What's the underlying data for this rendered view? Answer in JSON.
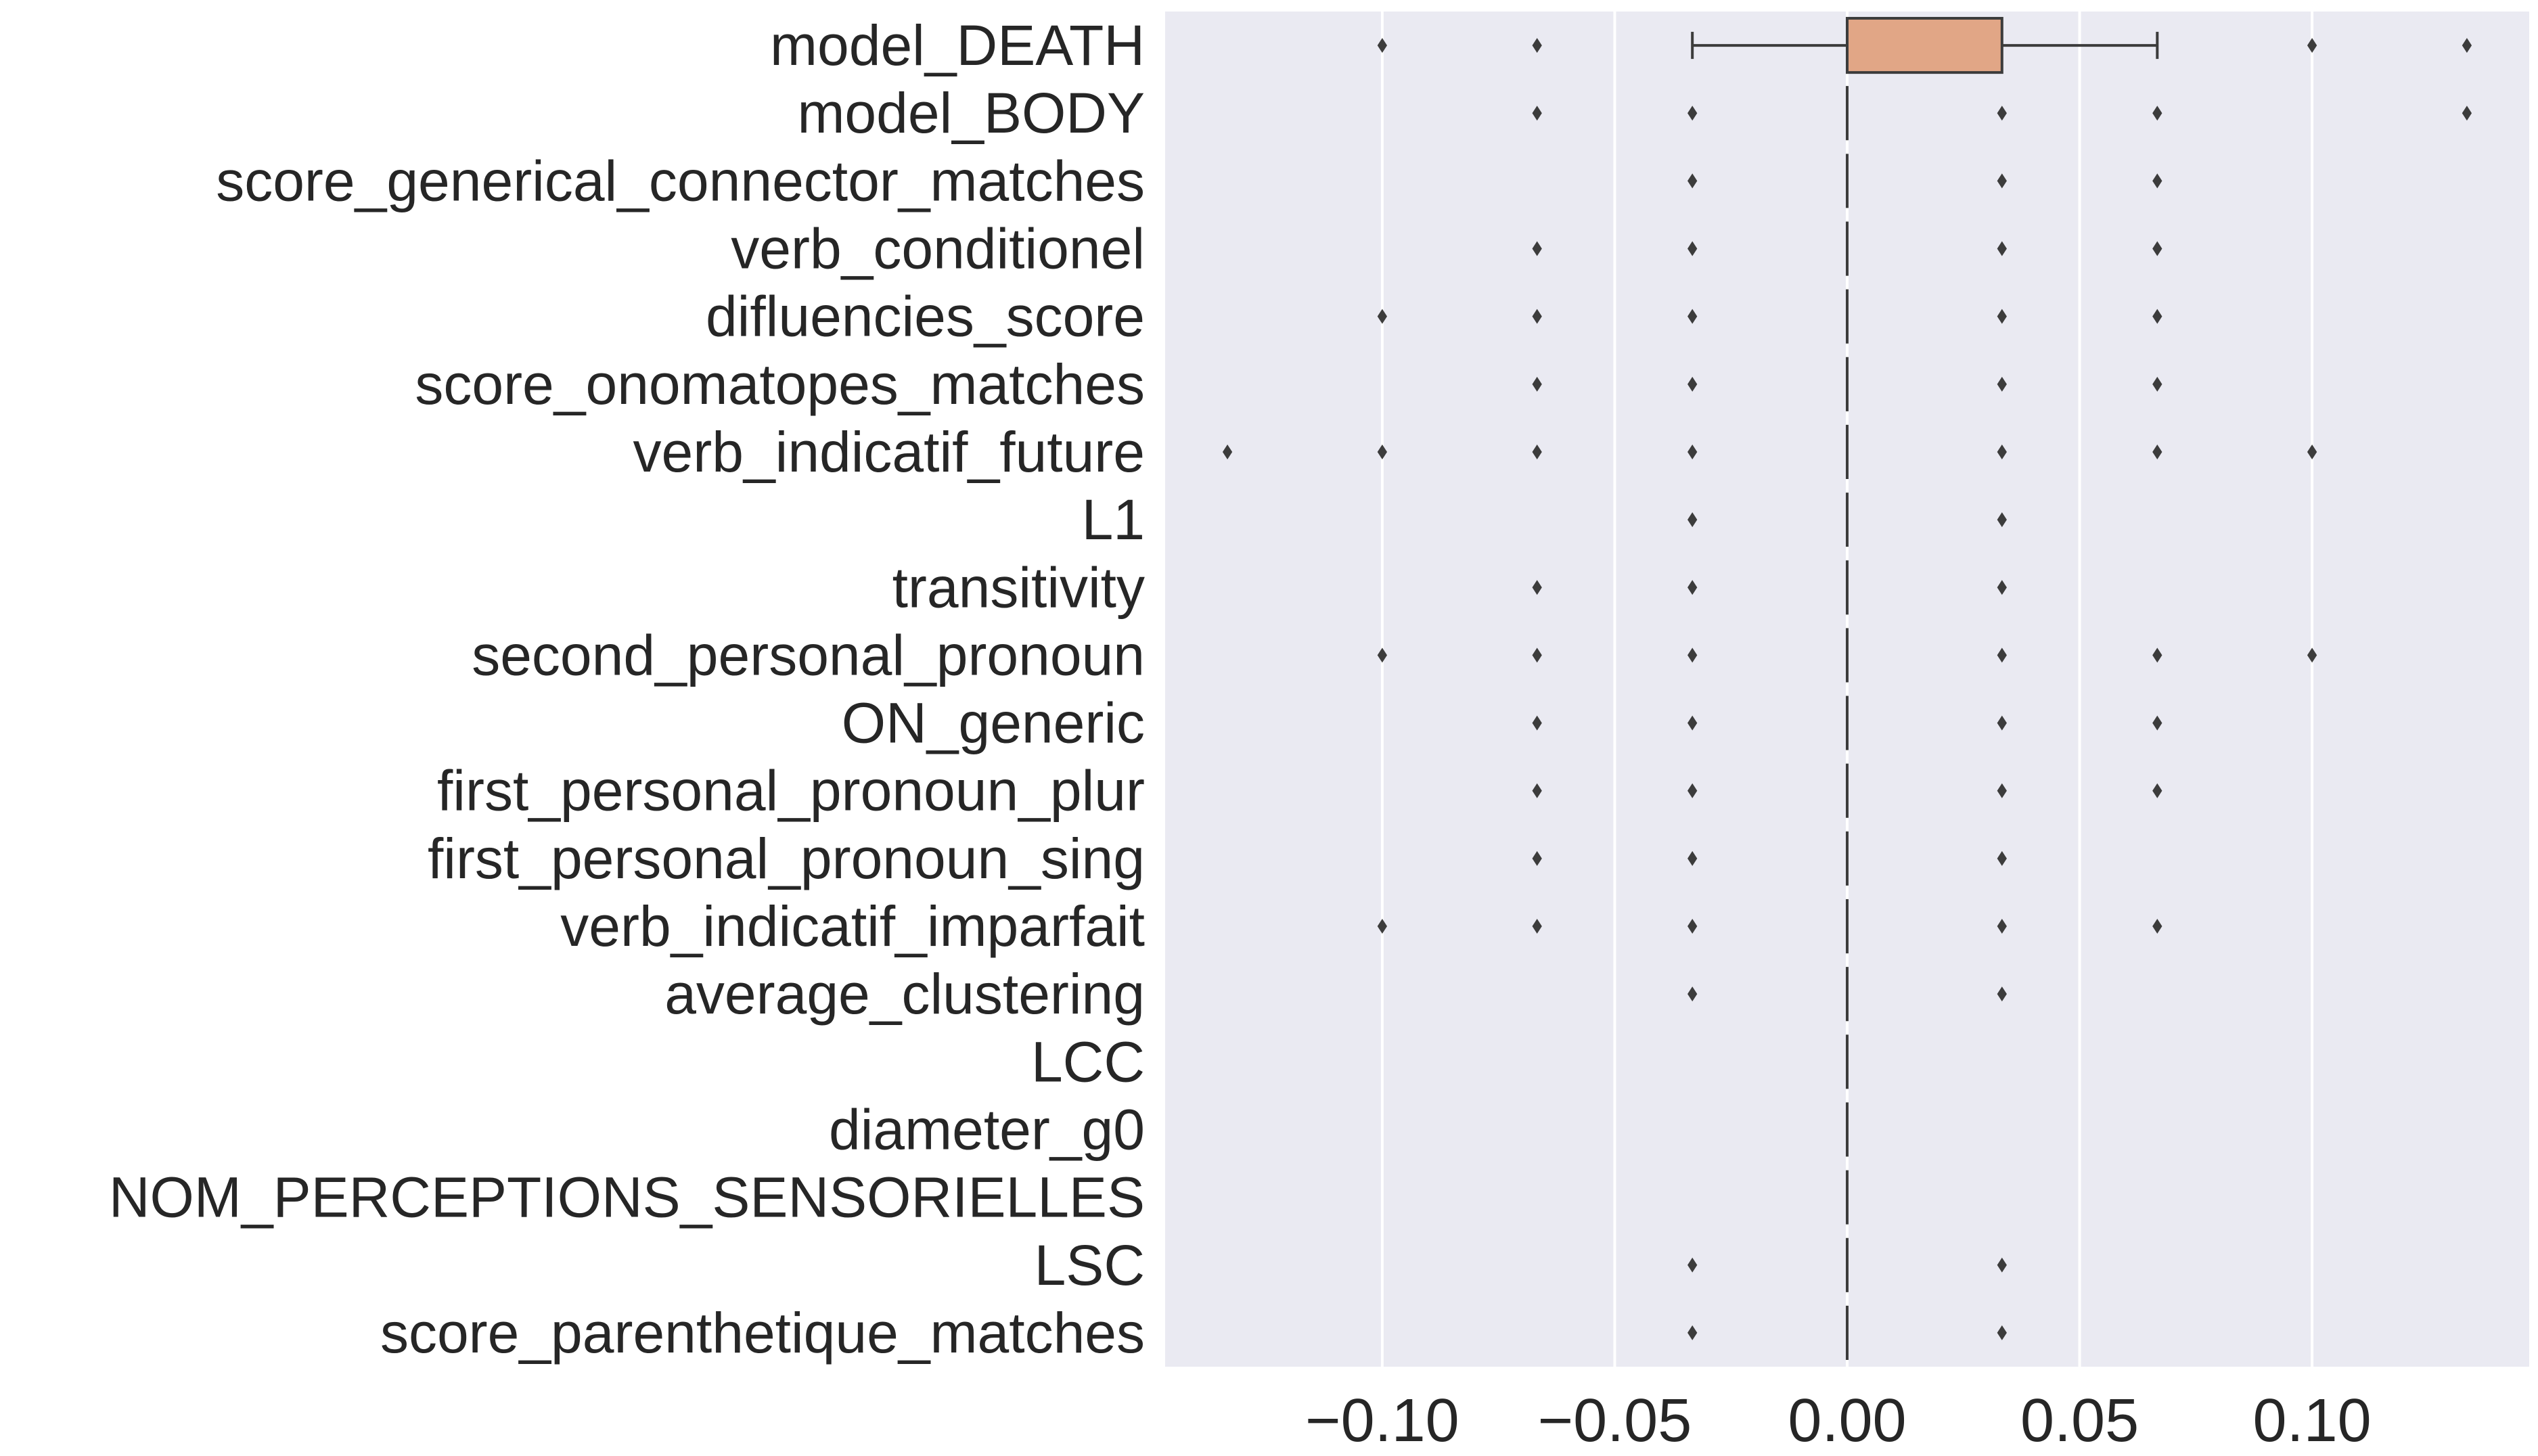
{
  "chart_data": {
    "type": "box",
    "orientation": "horizontal",
    "xlim": [
      -0.1467,
      0.1467
    ],
    "xticks": [
      -0.1,
      -0.05,
      0.0,
      0.05,
      0.1
    ],
    "xtick_labels": [
      "−0.10",
      "−0.05",
      "0.00",
      "0.05",
      "0.10"
    ],
    "grid": true,
    "background": "#eaeaf2",
    "box_color": "#e1a686",
    "categories": [
      {
        "label": "model_DEATH",
        "q1": 0.0,
        "median": 0.0,
        "q3": 0.0333,
        "whisker_low": -0.0333,
        "whisker_high": 0.0667,
        "outliers": [
          -0.1,
          -0.0667,
          0.1,
          0.1333
        ]
      },
      {
        "label": "model_BODY",
        "q1": 0.0,
        "median": 0.0,
        "q3": 0.0,
        "whisker_low": 0.0,
        "whisker_high": 0.0,
        "outliers": [
          -0.0667,
          -0.0333,
          0.0333,
          0.0667,
          0.1333
        ]
      },
      {
        "label": "score_generical_connector_matches",
        "q1": 0.0,
        "median": 0.0,
        "q3": 0.0,
        "whisker_low": 0.0,
        "whisker_high": 0.0,
        "outliers": [
          -0.0333,
          0.0333,
          0.0667
        ]
      },
      {
        "label": "verb_conditionel",
        "q1": 0.0,
        "median": 0.0,
        "q3": 0.0,
        "whisker_low": 0.0,
        "whisker_high": 0.0,
        "outliers": [
          -0.0667,
          -0.0333,
          0.0333,
          0.0667
        ]
      },
      {
        "label": "difluencies_score",
        "q1": 0.0,
        "median": 0.0,
        "q3": 0.0,
        "whisker_low": 0.0,
        "whisker_high": 0.0,
        "outliers": [
          -0.1,
          -0.0667,
          -0.0333,
          0.0333,
          0.0667
        ]
      },
      {
        "label": "score_onomatopes_matches",
        "q1": 0.0,
        "median": 0.0,
        "q3": 0.0,
        "whisker_low": 0.0,
        "whisker_high": 0.0,
        "outliers": [
          -0.0667,
          -0.0333,
          0.0333,
          0.0667
        ]
      },
      {
        "label": "verb_indicatif_future",
        "q1": 0.0,
        "median": 0.0,
        "q3": 0.0,
        "whisker_low": 0.0,
        "whisker_high": 0.0,
        "outliers": [
          -0.1333,
          -0.1,
          -0.0667,
          -0.0333,
          0.0333,
          0.0667,
          0.1
        ]
      },
      {
        "label": "L1",
        "q1": 0.0,
        "median": 0.0,
        "q3": 0.0,
        "whisker_low": 0.0,
        "whisker_high": 0.0,
        "outliers": [
          -0.0333,
          0.0333
        ]
      },
      {
        "label": "transitivity",
        "q1": 0.0,
        "median": 0.0,
        "q3": 0.0,
        "whisker_low": 0.0,
        "whisker_high": 0.0,
        "outliers": [
          -0.0667,
          -0.0333,
          0.0333
        ]
      },
      {
        "label": "second_personal_pronoun",
        "q1": 0.0,
        "median": 0.0,
        "q3": 0.0,
        "whisker_low": 0.0,
        "whisker_high": 0.0,
        "outliers": [
          -0.1,
          -0.0667,
          -0.0333,
          0.0333,
          0.0667,
          0.1
        ]
      },
      {
        "label": "ON_generic",
        "q1": 0.0,
        "median": 0.0,
        "q3": 0.0,
        "whisker_low": 0.0,
        "whisker_high": 0.0,
        "outliers": [
          -0.0667,
          -0.0333,
          0.0333,
          0.0667
        ]
      },
      {
        "label": "first_personal_pronoun_plur",
        "q1": 0.0,
        "median": 0.0,
        "q3": 0.0,
        "whisker_low": 0.0,
        "whisker_high": 0.0,
        "outliers": [
          -0.0667,
          -0.0333,
          0.0333,
          0.0667
        ]
      },
      {
        "label": "first_personal_pronoun_sing",
        "q1": 0.0,
        "median": 0.0,
        "q3": 0.0,
        "whisker_low": 0.0,
        "whisker_high": 0.0,
        "outliers": [
          -0.0667,
          -0.0333,
          0.0333
        ]
      },
      {
        "label": "verb_indicatif_imparfait",
        "q1": 0.0,
        "median": 0.0,
        "q3": 0.0,
        "whisker_low": 0.0,
        "whisker_high": 0.0,
        "outliers": [
          -0.1,
          -0.0667,
          -0.0333,
          0.0333,
          0.0667
        ]
      },
      {
        "label": "average_clustering",
        "q1": 0.0,
        "median": 0.0,
        "q3": 0.0,
        "whisker_low": 0.0,
        "whisker_high": 0.0,
        "outliers": [
          -0.0333,
          0.0333
        ]
      },
      {
        "label": "LCC",
        "q1": 0.0,
        "median": 0.0,
        "q3": 0.0,
        "whisker_low": 0.0,
        "whisker_high": 0.0,
        "outliers": []
      },
      {
        "label": "diameter_g0",
        "q1": 0.0,
        "median": 0.0,
        "q3": 0.0,
        "whisker_low": 0.0,
        "whisker_high": 0.0,
        "outliers": []
      },
      {
        "label": "NOM_PERCEPTIONS_SENSORIELLES",
        "q1": 0.0,
        "median": 0.0,
        "q3": 0.0,
        "whisker_low": 0.0,
        "whisker_high": 0.0,
        "outliers": []
      },
      {
        "label": "LSC",
        "q1": 0.0,
        "median": 0.0,
        "q3": 0.0,
        "whisker_low": 0.0,
        "whisker_high": 0.0,
        "outliers": [
          -0.0333,
          0.0333
        ]
      },
      {
        "label": "score_parenthetique_matches",
        "q1": 0.0,
        "median": 0.0,
        "q3": 0.0,
        "whisker_low": 0.0,
        "whisker_high": 0.0,
        "outliers": [
          -0.0333,
          0.0333
        ]
      }
    ]
  }
}
